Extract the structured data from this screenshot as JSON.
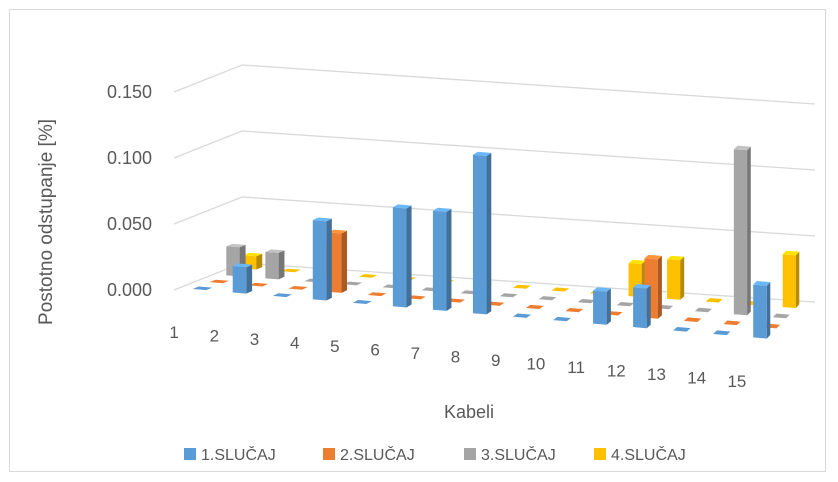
{
  "chart_data": {
    "type": "bar",
    "subtype": "3d-column",
    "title": "",
    "xlabel": "Kabeli",
    "ylabel": "Postotno odstupanje [%]",
    "ylim": [
      0,
      0.15
    ],
    "yticks": [
      "0.000",
      "0.050",
      "0.100",
      "0.150"
    ],
    "categories": [
      "1",
      "2",
      "3",
      "4",
      "5",
      "6",
      "7",
      "8",
      "9",
      "10",
      "11",
      "12",
      "13",
      "14",
      "15"
    ],
    "grid": true,
    "legend_position": "bottom",
    "series": [
      {
        "name": "1.SLUČAJ",
        "color": "#5b9bd5",
        "values": [
          0,
          0.02,
          0,
          0.06,
          0,
          0.075,
          0.075,
          0.12,
          0,
          0,
          0.025,
          0.03,
          0,
          0,
          0.04
        ]
      },
      {
        "name": "2.SLUČAJ",
        "color": "#ed7d31",
        "values": [
          0,
          0,
          0,
          0.045,
          0,
          0,
          0,
          0,
          0,
          0,
          0,
          0.045,
          0,
          0,
          0
        ]
      },
      {
        "name": "3.SLUČAJ",
        "color": "#a5a5a5",
        "values": [
          0.022,
          0.02,
          0,
          0,
          0,
          0,
          0,
          0,
          0,
          0,
          0,
          0,
          0,
          0.125,
          0
        ]
      },
      {
        "name": "4.SLUČAJ",
        "color": "#ffc000",
        "values": [
          0.01,
          0,
          0.02,
          0,
          0,
          0,
          0,
          0,
          0,
          0,
          0.025,
          0.03,
          0,
          0,
          0.04
        ]
      }
    ]
  }
}
